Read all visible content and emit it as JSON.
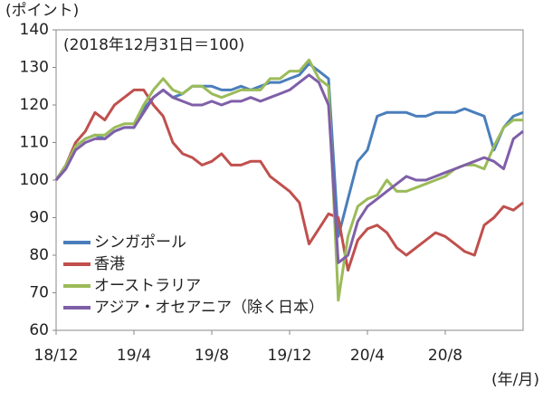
{
  "chart_data": {
    "type": "line",
    "y_axis_label": "(ポイント)",
    "x_axis_label": "(年/月)",
    "annotation": "(2018年12月31日＝100)",
    "categories": [
      "18/12",
      null,
      null,
      null,
      null,
      null,
      null,
      null,
      "19/4",
      null,
      null,
      null,
      null,
      null,
      null,
      null,
      "19/8",
      null,
      null,
      null,
      null,
      null,
      null,
      null,
      "19/12",
      null,
      null,
      null,
      null,
      null,
      null,
      null,
      "20/4",
      null,
      null,
      null,
      null,
      null,
      null,
      null,
      "20/8",
      null,
      null,
      null,
      null,
      null,
      null,
      null,
      null
    ],
    "ylim": [
      60,
      140
    ],
    "yticks": [
      60,
      70,
      80,
      90,
      100,
      110,
      120,
      130,
      140
    ],
    "legend": "bottom-left",
    "series": [
      {
        "name": "シンガポール",
        "color": "#4a7ebb",
        "values": [
          100,
          104,
          109,
          111,
          112,
          111,
          113,
          114,
          114,
          119,
          122,
          124,
          122,
          123,
          125,
          125,
          125,
          124,
          124,
          125,
          124,
          125,
          126,
          126,
          127,
          128,
          131,
          129,
          127,
          85,
          95,
          105,
          108,
          117,
          118,
          118,
          118,
          117,
          117,
          118,
          118,
          118,
          119,
          118,
          117,
          108,
          114,
          117,
          118
        ]
      },
      {
        "name": "香港",
        "color": "#c0504d",
        "values": [
          100,
          104,
          110,
          113,
          118,
          116,
          120,
          122,
          124,
          124,
          120,
          117,
          110,
          107,
          106,
          104,
          105,
          107,
          104,
          104,
          105,
          105,
          101,
          99,
          97,
          94,
          83,
          87,
          91,
          90,
          76,
          84,
          87,
          88,
          86,
          82,
          80,
          82,
          84,
          86,
          85,
          83,
          81,
          80,
          88,
          90,
          93,
          92,
          94
        ]
      },
      {
        "name": "オーストラリア",
        "color": "#9bbb59",
        "values": [
          100,
          104,
          109,
          111,
          112,
          112,
          114,
          115,
          115,
          120,
          124,
          127,
          124,
          123,
          125,
          125,
          123,
          122,
          123,
          124,
          124,
          124,
          127,
          127,
          129,
          129,
          132,
          127,
          125,
          68,
          85,
          93,
          95,
          96,
          100,
          97,
          97,
          98,
          99,
          100,
          101,
          103,
          104,
          104,
          103,
          109,
          114,
          116,
          116
        ]
      },
      {
        "name": "アジア・オセアニア（除く日本）",
        "color": "#7f5fa8",
        "values": [
          100,
          103,
          108,
          110,
          111,
          111,
          113,
          114,
          114,
          118,
          122,
          124,
          122,
          121,
          120,
          120,
          121,
          120,
          121,
          121,
          122,
          121,
          122,
          123,
          124,
          126,
          128,
          126,
          120,
          78,
          80,
          89,
          93,
          95,
          97,
          99,
          101,
          100,
          100,
          101,
          102,
          103,
          104,
          105,
          106,
          105,
          103,
          111,
          113
        ]
      }
    ]
  }
}
